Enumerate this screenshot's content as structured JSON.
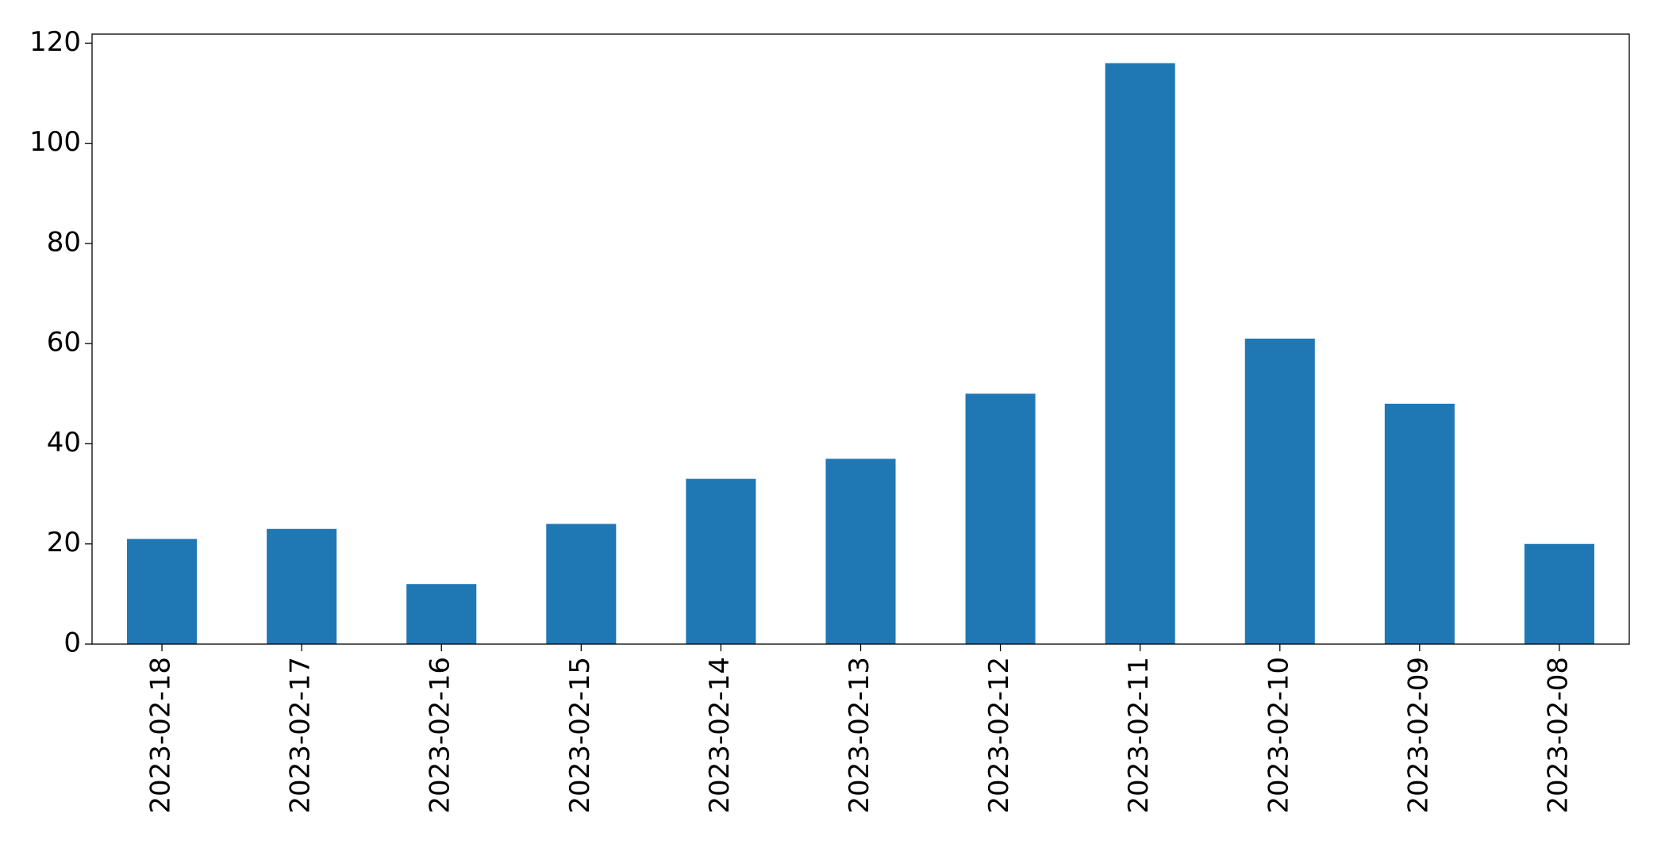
{
  "chart_data": {
    "type": "bar",
    "categories": [
      "2023-02-18",
      "2023-02-17",
      "2023-02-16",
      "2023-02-15",
      "2023-02-14",
      "2023-02-13",
      "2023-02-12",
      "2023-02-11",
      "2023-02-10",
      "2023-02-09",
      "2023-02-08"
    ],
    "values": [
      21,
      23,
      12,
      24,
      33,
      37,
      50,
      116,
      61,
      48,
      20
    ],
    "color": "#1f77b4",
    "ylim": [
      0,
      121.8
    ],
    "yticks": [
      0,
      20,
      40,
      60,
      80,
      100,
      120
    ],
    "grid": false
  }
}
